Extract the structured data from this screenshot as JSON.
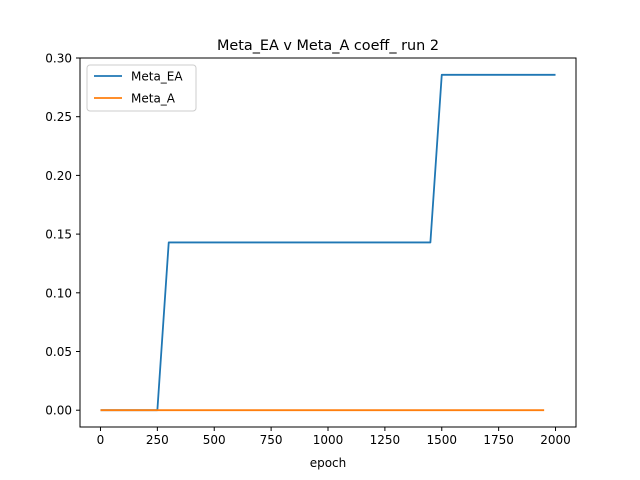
{
  "chart_data": {
    "type": "line",
    "title": "Meta_EA v Meta_A coeff_ run 2",
    "xlabel": "epoch",
    "ylabel": "",
    "xlim": [
      -90,
      2090
    ],
    "ylim": [
      -0.0143,
      0.3
    ],
    "x_ticks": [
      0,
      250,
      500,
      750,
      1000,
      1250,
      1500,
      1750,
      2000
    ],
    "y_ticks": [
      0.0,
      0.05,
      0.1,
      0.15,
      0.2,
      0.25,
      0.3
    ],
    "x_tick_labels": [
      "0",
      "250",
      "500",
      "750",
      "1000",
      "1250",
      "1500",
      "1750",
      "2000"
    ],
    "y_tick_labels": [
      "0.00",
      "0.05",
      "0.10",
      "0.15",
      "0.20",
      "0.25",
      "0.30"
    ],
    "grid": false,
    "legend_position": "top-left",
    "series": [
      {
        "name": "Meta_EA",
        "color": "#1f77b4",
        "x": [
          0,
          250,
          300,
          1450,
          1500,
          2000
        ],
        "y": [
          0.0,
          0.0,
          0.1429,
          0.1429,
          0.2857,
          0.2857
        ]
      },
      {
        "name": "Meta_A",
        "color": "#ff7f0e",
        "x": [
          0,
          250,
          300,
          1450,
          1500,
          1950
        ],
        "y": [
          0.0,
          0.0,
          0.0,
          0.0,
          0.0,
          0.0
        ]
      }
    ]
  }
}
